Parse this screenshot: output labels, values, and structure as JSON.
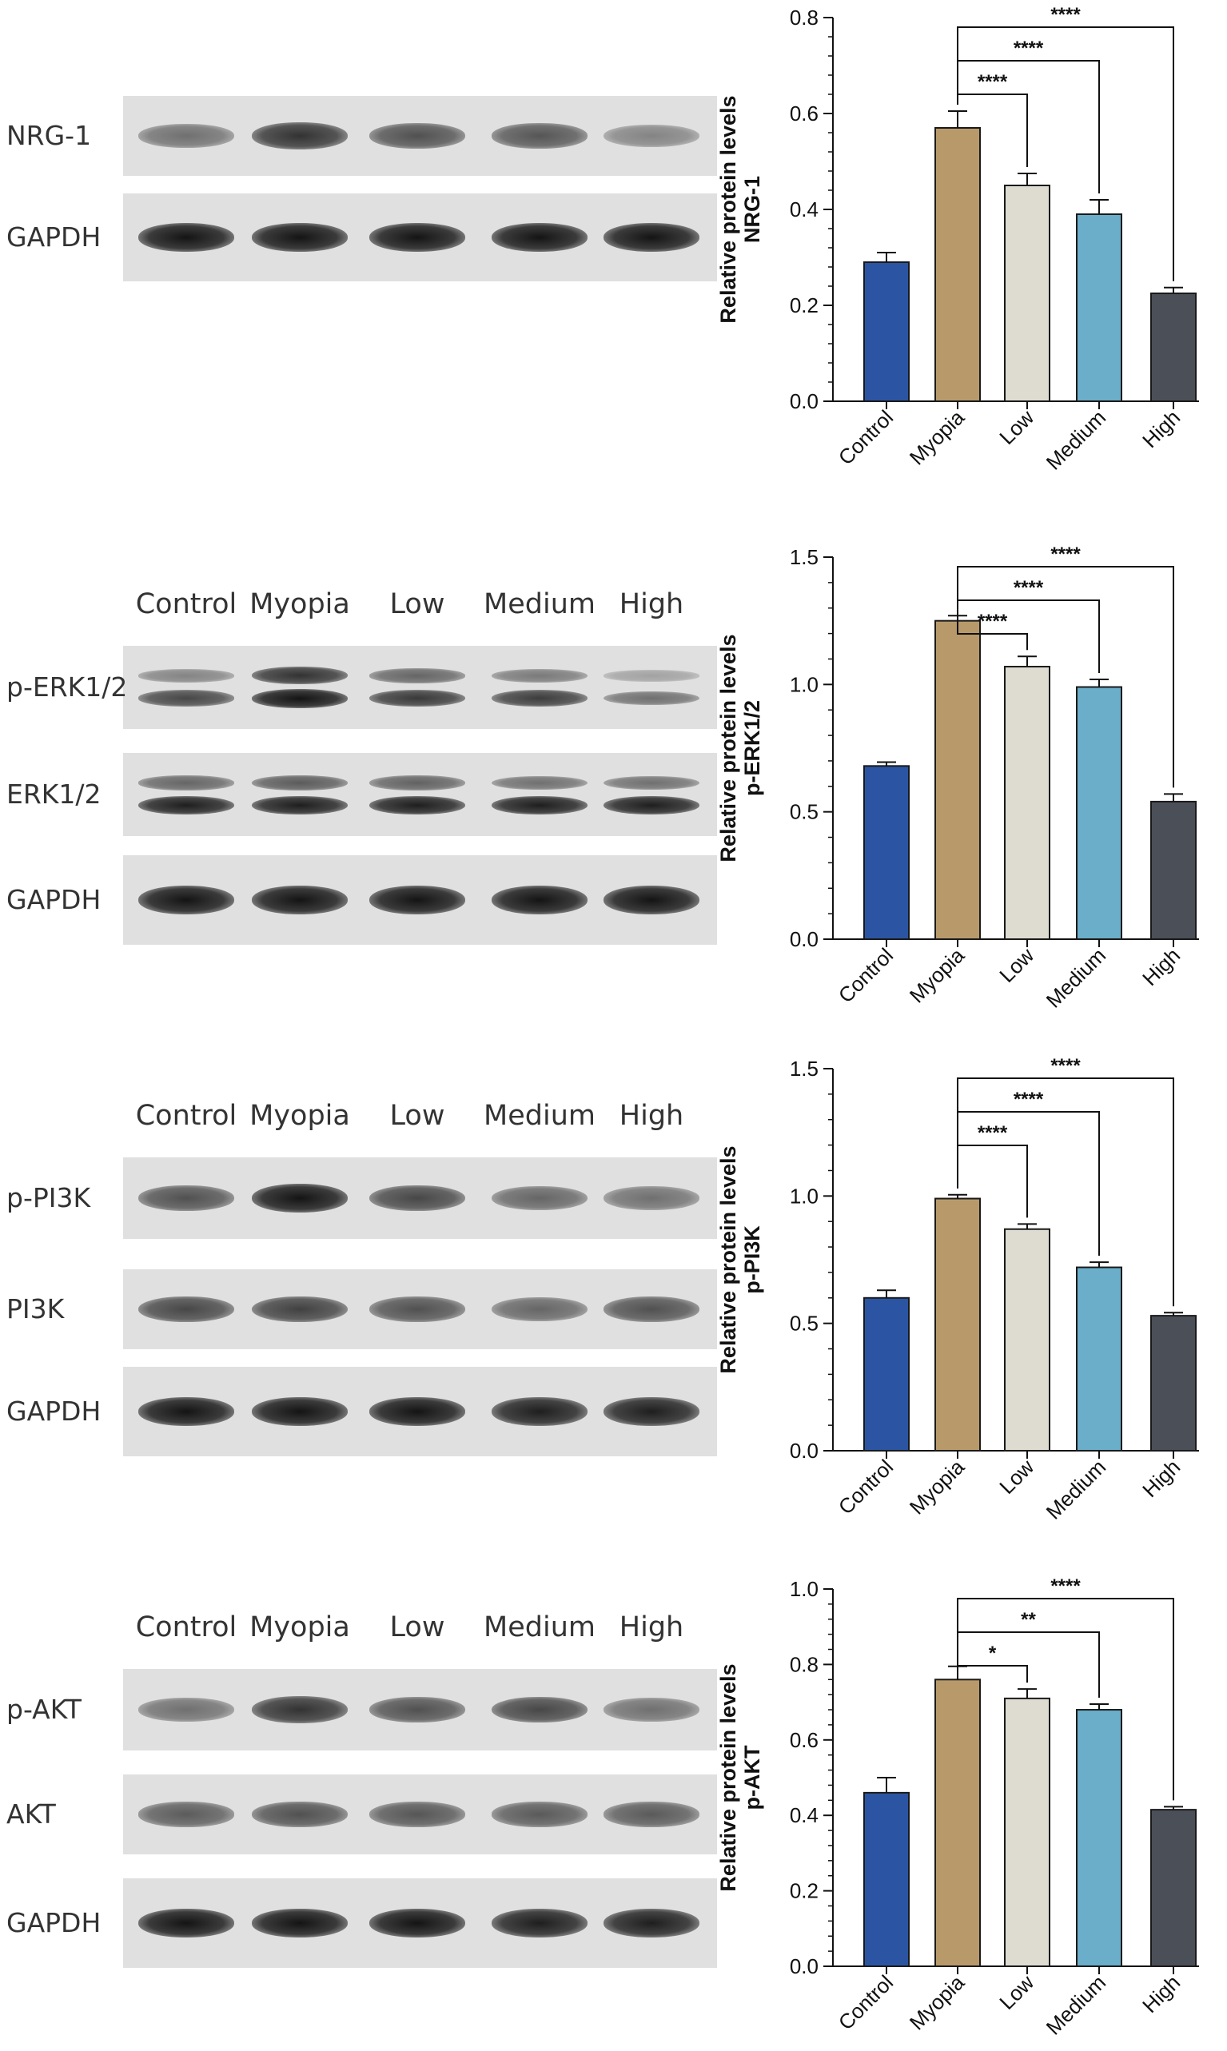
{
  "lanes": [
    "Control",
    "Myopia",
    "Low",
    "Medium",
    "High"
  ],
  "panels": [
    {
      "strips": [
        {
          "label": "NRG-1",
          "bands": [
            [
              0.55
            ],
            [
              0.85
            ],
            [
              0.7
            ],
            [
              0.68
            ],
            [
              0.45
            ]
          ]
        },
        {
          "label": "GAPDH",
          "bands": [
            [
              1.0
            ],
            [
              1.0
            ],
            [
              1.0
            ],
            [
              1.0
            ],
            [
              1.0
            ]
          ]
        }
      ]
    },
    {
      "strips": [
        {
          "label": "p-ERK1/2",
          "bands": [
            [
              0.45,
              0.75
            ],
            [
              0.85,
              1.0
            ],
            [
              0.6,
              0.82
            ],
            [
              0.5,
              0.8
            ],
            [
              0.3,
              0.55
            ]
          ]
        },
        {
          "label": "ERK1/2",
          "bands": [
            [
              0.6,
              0.95
            ],
            [
              0.65,
              0.95
            ],
            [
              0.62,
              0.95
            ],
            [
              0.55,
              0.95
            ],
            [
              0.55,
              0.95
            ]
          ]
        },
        {
          "label": "GAPDH",
          "bands": [
            [
              1.0
            ],
            [
              1.0
            ],
            [
              1.0
            ],
            [
              1.0
            ],
            [
              1.0
            ]
          ]
        }
      ]
    },
    {
      "strips": [
        {
          "label": "p-PI3K",
          "bands": [
            [
              0.7
            ],
            [
              1.0
            ],
            [
              0.75
            ],
            [
              0.6
            ],
            [
              0.55
            ]
          ]
        },
        {
          "label": "PI3K",
          "bands": [
            [
              0.75
            ],
            [
              0.78
            ],
            [
              0.7
            ],
            [
              0.6
            ],
            [
              0.7
            ]
          ]
        },
        {
          "label": "GAPDH",
          "bands": [
            [
              1.0
            ],
            [
              1.0
            ],
            [
              1.0
            ],
            [
              0.95
            ],
            [
              0.95
            ]
          ]
        }
      ]
    },
    {
      "strips": [
        {
          "label": "p-AKT",
          "bands": [
            [
              0.55
            ],
            [
              0.85
            ],
            [
              0.7
            ],
            [
              0.75
            ],
            [
              0.55
            ]
          ]
        },
        {
          "label": "AKT",
          "bands": [
            [
              0.65
            ],
            [
              0.7
            ],
            [
              0.68
            ],
            [
              0.66
            ],
            [
              0.66
            ]
          ]
        },
        {
          "label": "GAPDH",
          "bands": [
            [
              1.0
            ],
            [
              1.0
            ],
            [
              1.0
            ],
            [
              0.95
            ],
            [
              0.95
            ]
          ]
        }
      ]
    }
  ],
  "chart_data": [
    {
      "type": "bar",
      "categories": [
        "Control",
        "Myopia",
        "Low",
        "Medium",
        "High"
      ],
      "values": [
        0.29,
        0.57,
        0.45,
        0.39,
        0.225
      ],
      "errors": [
        0.02,
        0.035,
        0.025,
        0.03,
        0.012
      ],
      "ylabel_line1": "Relative protein levels",
      "ylabel_line2": "NRG-1",
      "ylim": [
        0,
        0.8
      ],
      "yticks": [
        "0.0",
        "0.2",
        "0.4",
        "0.6",
        "0.8"
      ],
      "significance": [
        {
          "from": "Myopia",
          "to": "Low",
          "label": "****"
        },
        {
          "from": "Myopia",
          "to": "Medium",
          "label": "****"
        },
        {
          "from": "Myopia",
          "to": "High",
          "label": "****"
        }
      ]
    },
    {
      "type": "bar",
      "categories": [
        "Control",
        "Myopia",
        "Low",
        "Medium",
        "High"
      ],
      "values": [
        0.68,
        1.25,
        1.07,
        0.99,
        0.54
      ],
      "errors": [
        0.015,
        0.02,
        0.04,
        0.03,
        0.03
      ],
      "ylabel_line1": "Relative protein levels",
      "ylabel_line2": "p-ERK1/2",
      "ylim": [
        0,
        1.5
      ],
      "yticks": [
        "0.0",
        "0.5",
        "1.0",
        "1.5"
      ],
      "significance": [
        {
          "from": "Myopia",
          "to": "Low",
          "label": "****"
        },
        {
          "from": "Myopia",
          "to": "Medium",
          "label": "****"
        },
        {
          "from": "Myopia",
          "to": "High",
          "label": "****"
        }
      ]
    },
    {
      "type": "bar",
      "categories": [
        "Control",
        "Myopia",
        "Low",
        "Medium",
        "High"
      ],
      "values": [
        0.6,
        0.99,
        0.87,
        0.72,
        0.53
      ],
      "errors": [
        0.03,
        0.015,
        0.02,
        0.02,
        0.012
      ],
      "ylabel_line1": "Relative protein levels",
      "ylabel_line2": "p-PI3K",
      "ylim": [
        0,
        1.5
      ],
      "yticks": [
        "0.0",
        "0.5",
        "1.0",
        "1.5"
      ],
      "significance": [
        {
          "from": "Myopia",
          "to": "Low",
          "label": "****"
        },
        {
          "from": "Myopia",
          "to": "Medium",
          "label": "****"
        },
        {
          "from": "Myopia",
          "to": "High",
          "label": "****"
        }
      ]
    },
    {
      "type": "bar",
      "categories": [
        "Control",
        "Myopia",
        "Low",
        "Medium",
        "High"
      ],
      "values": [
        0.46,
        0.76,
        0.71,
        0.68,
        0.415
      ],
      "errors": [
        0.04,
        0.035,
        0.025,
        0.015,
        0.008
      ],
      "ylabel_line1": "Relative protein levels",
      "ylabel_line2": "p-AKT",
      "ylim": [
        0,
        1.0
      ],
      "yticks": [
        "0.0",
        "0.2",
        "0.4",
        "0.6",
        "0.8",
        "1.0"
      ],
      "significance": [
        {
          "from": "Myopia",
          "to": "Low",
          "label": "*"
        },
        {
          "from": "Myopia",
          "to": "Medium",
          "label": "**"
        },
        {
          "from": "Myopia",
          "to": "High",
          "label": "****"
        }
      ]
    }
  ],
  "colors": {
    "bars": [
      "#2b55a3",
      "#b89a6a",
      "#dedbd0",
      "#6aaec9",
      "#4a4f58"
    ],
    "bar_stroke": "#1a1a1a",
    "blot_bg": "#e0e0e0",
    "band": "#1a1a1a"
  }
}
